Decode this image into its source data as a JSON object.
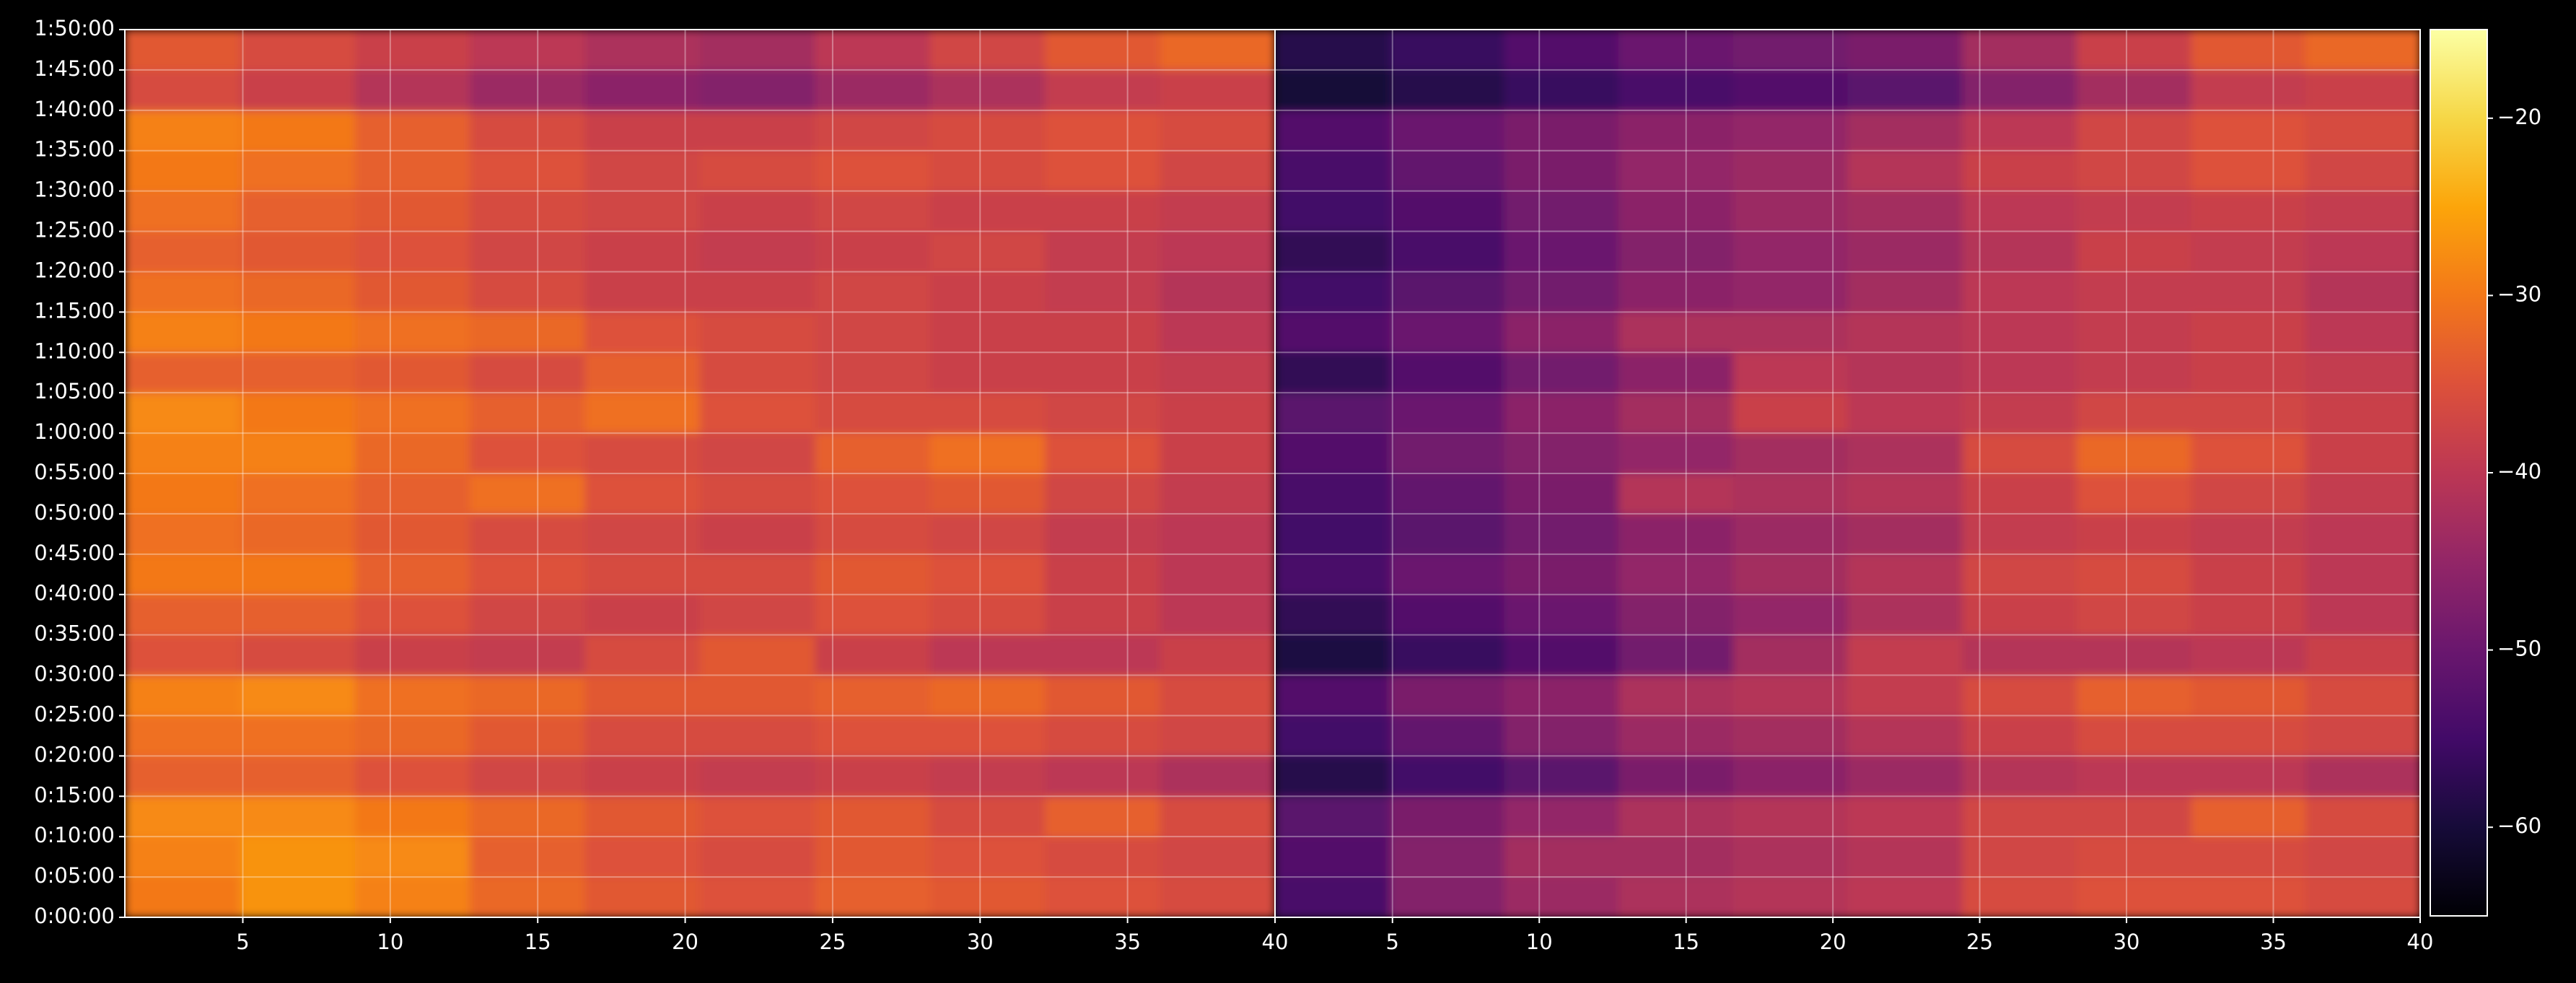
{
  "chart_data": [
    {
      "type": "heatmap",
      "colormap": "inferno",
      "xlim": [
        1,
        40
      ],
      "xticks": [
        5,
        10,
        15,
        20,
        25,
        30,
        35,
        40
      ],
      "ylim": [
        0,
        6600
      ],
      "yticks": [
        {
          "value": 0,
          "label": "0:00:00"
        },
        {
          "value": 300,
          "label": "0:05:00"
        },
        {
          "value": 600,
          "label": "0:10:00"
        },
        {
          "value": 900,
          "label": "0:15:00"
        },
        {
          "value": 1200,
          "label": "0:20:00"
        },
        {
          "value": 1500,
          "label": "0:25:00"
        },
        {
          "value": 1800,
          "label": "0:30:00"
        },
        {
          "value": 2100,
          "label": "0:35:00"
        },
        {
          "value": 2400,
          "label": "0:40:00"
        },
        {
          "value": 2700,
          "label": "0:45:00"
        },
        {
          "value": 3000,
          "label": "0:50:00"
        },
        {
          "value": 3300,
          "label": "0:55:00"
        },
        {
          "value": 3600,
          "label": "1:00:00"
        },
        {
          "value": 3900,
          "label": "1:05:00"
        },
        {
          "value": 4200,
          "label": "1:10:00"
        },
        {
          "value": 4500,
          "label": "1:15:00"
        },
        {
          "value": 4800,
          "label": "1:20:00"
        },
        {
          "value": 5100,
          "label": "1:25:00"
        },
        {
          "value": 5400,
          "label": "1:30:00"
        },
        {
          "value": 5700,
          "label": "1:35:00"
        },
        {
          "value": 6000,
          "label": "1:40:00"
        },
        {
          "value": 6300,
          "label": "1:45:00"
        },
        {
          "value": 6600,
          "label": "1:50:00"
        }
      ],
      "clim": [
        -65,
        -15
      ],
      "cticks": [
        {
          "value": -20,
          "label": "−20"
        },
        {
          "value": -30,
          "label": "−30"
        },
        {
          "value": -40,
          "label": "−40"
        },
        {
          "value": -50,
          "label": "−50"
        },
        {
          "value": -60,
          "label": "−60"
        }
      ],
      "grid": true,
      "z": [
        [
          -30,
          -27,
          -29,
          -32,
          -34,
          -35,
          -33,
          -34,
          -35,
          -36
        ],
        [
          -29,
          -27,
          -28,
          -33,
          -35,
          -36,
          -34,
          -35,
          -36,
          -37
        ],
        [
          -28,
          -28,
          -30,
          -32,
          -34,
          -35,
          -34,
          -36,
          -33,
          -36
        ],
        [
          -33,
          -33,
          -35,
          -37,
          -38,
          -39,
          -38,
          -39,
          -40,
          -42
        ],
        [
          -31,
          -31,
          -32,
          -34,
          -36,
          -36,
          -35,
          -35,
          -36,
          -37
        ],
        [
          -29,
          -28,
          -31,
          -32,
          -34,
          -34,
          -33,
          -32,
          -34,
          -36
        ],
        [
          -35,
          -36,
          -38,
          -39,
          -36,
          -34,
          -38,
          -40,
          -40,
          -38
        ],
        [
          -33,
          -33,
          -35,
          -37,
          -38,
          -37,
          -35,
          -36,
          -38,
          -40
        ],
        [
          -30,
          -30,
          -33,
          -35,
          -36,
          -36,
          -34,
          -35,
          -38,
          -40
        ],
        [
          -31,
          -32,
          -34,
          -36,
          -37,
          -38,
          -36,
          -37,
          -39,
          -40
        ],
        [
          -30,
          -31,
          -33,
          -31,
          -35,
          -36,
          -35,
          -34,
          -37,
          -39
        ],
        [
          -29,
          -29,
          -32,
          -35,
          -36,
          -37,
          -33,
          -31,
          -35,
          -38
        ],
        [
          -28,
          -30,
          -31,
          -33,
          -31,
          -35,
          -36,
          -36,
          -37,
          -38
        ],
        [
          -33,
          -33,
          -34,
          -36,
          -33,
          -36,
          -37,
          -38,
          -38,
          -39
        ],
        [
          -29,
          -30,
          -31,
          -32,
          -35,
          -36,
          -37,
          -38,
          -38,
          -40
        ],
        [
          -31,
          -32,
          -34,
          -36,
          -38,
          -38,
          -37,
          -38,
          -39,
          -41
        ],
        [
          -33,
          -34,
          -35,
          -37,
          -38,
          -39,
          -38,
          -37,
          -39,
          -40
        ],
        [
          -31,
          -33,
          -34,
          -36,
          -37,
          -38,
          -37,
          -38,
          -38,
          -39
        ],
        [
          -30,
          -31,
          -33,
          -35,
          -37,
          -36,
          -35,
          -36,
          -35,
          -37
        ],
        [
          -29,
          -30,
          -33,
          -36,
          -38,
          -38,
          -37,
          -36,
          -35,
          -36
        ],
        [
          -36,
          -38,
          -41,
          -44,
          -46,
          -47,
          -44,
          -42,
          -39,
          -38
        ],
        [
          -34,
          -36,
          -38,
          -40,
          -42,
          -43,
          -40,
          -37,
          -34,
          -32
        ]
      ]
    },
    {
      "type": "heatmap",
      "colormap": "inferno",
      "xlim": [
        1,
        40
      ],
      "xticks": [
        5,
        10,
        15,
        20,
        25,
        30,
        35,
        40
      ],
      "ylim": [
        0,
        6600
      ],
      "yticks": [
        0,
        300,
        600,
        900,
        1200,
        1500,
        1800,
        2100,
        2400,
        2700,
        3000,
        3300,
        3600,
        3900,
        4200,
        4500,
        4800,
        5100,
        5400,
        5700,
        6000,
        6300,
        6600
      ],
      "clim": [
        -65,
        -15
      ],
      "grid": true,
      "z": [
        [
          -54,
          -47,
          -44,
          -42,
          -41,
          -40,
          -36,
          -35,
          -35,
          -36
        ],
        [
          -53,
          -47,
          -43,
          -43,
          -42,
          -41,
          -37,
          -36,
          -36,
          -37
        ],
        [
          -52,
          -48,
          -45,
          -42,
          -41,
          -40,
          -37,
          -37,
          -33,
          -36
        ],
        [
          -58,
          -55,
          -52,
          -48,
          -46,
          -44,
          -41,
          -40,
          -40,
          -42
        ],
        [
          -55,
          -51,
          -47,
          -44,
          -43,
          -41,
          -38,
          -36,
          -36,
          -37
        ],
        [
          -53,
          -48,
          -46,
          -42,
          -41,
          -39,
          -36,
          -33,
          -34,
          -36
        ],
        [
          -59,
          -56,
          -53,
          -49,
          -43,
          -39,
          -41,
          -41,
          -40,
          -38
        ],
        [
          -57,
          -53,
          -50,
          -47,
          -45,
          -42,
          -38,
          -37,
          -38,
          -40
        ],
        [
          -54,
          -50,
          -48,
          -45,
          -43,
          -41,
          -37,
          -36,
          -38,
          -40
        ],
        [
          -55,
          -52,
          -49,
          -46,
          -44,
          -43,
          -39,
          -38,
          -39,
          -40
        ],
        [
          -54,
          -51,
          -48,
          -41,
          -42,
          -41,
          -38,
          -35,
          -37,
          -39
        ],
        [
          -53,
          -49,
          -47,
          -45,
          -43,
          -42,
          -36,
          -32,
          -35,
          -38
        ],
        [
          -52,
          -50,
          -46,
          -43,
          -38,
          -40,
          -39,
          -37,
          -37,
          -38
        ],
        [
          -57,
          -53,
          -49,
          -46,
          -40,
          -41,
          -40,
          -39,
          -38,
          -39
        ],
        [
          -53,
          -50,
          -46,
          -42,
          -42,
          -41,
          -40,
          -39,
          -38,
          -40
        ],
        [
          -55,
          -52,
          -49,
          -46,
          -45,
          -43,
          -40,
          -39,
          -39,
          -41
        ],
        [
          -57,
          -54,
          -50,
          -47,
          -45,
          -44,
          -41,
          -38,
          -39,
          -40
        ],
        [
          -55,
          -53,
          -49,
          -46,
          -44,
          -43,
          -40,
          -39,
          -38,
          -39
        ],
        [
          -54,
          -51,
          -48,
          -45,
          -44,
          -41,
          -38,
          -37,
          -35,
          -37
        ],
        [
          -53,
          -50,
          -48,
          -46,
          -45,
          -43,
          -40,
          -37,
          -35,
          -36
        ],
        [
          -60,
          -58,
          -56,
          -54,
          -53,
          -52,
          -47,
          -43,
          -39,
          -38
        ],
        [
          -58,
          -56,
          -53,
          -50,
          -49,
          -48,
          -43,
          -38,
          -34,
          -32
        ]
      ]
    }
  ]
}
